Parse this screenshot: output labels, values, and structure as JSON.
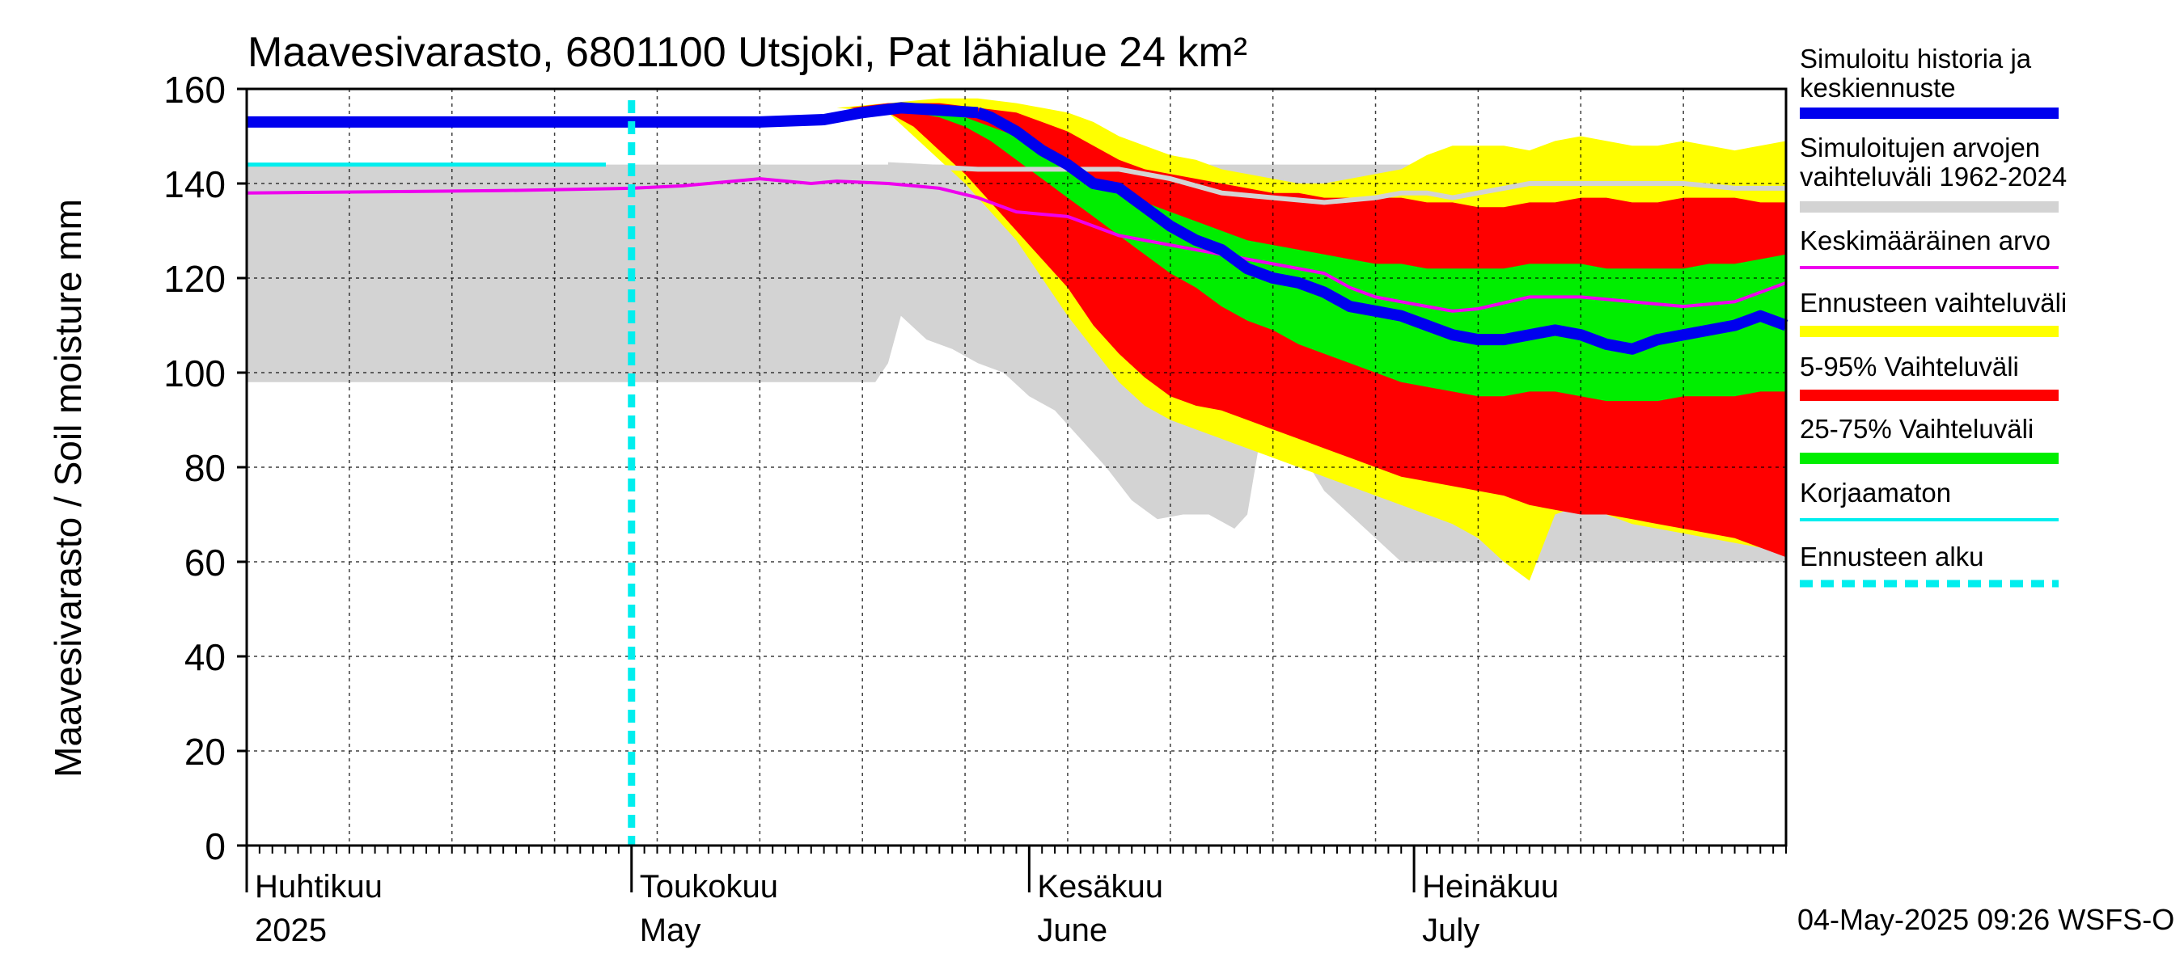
{
  "chart_data": {
    "type": "area",
    "title": "Maavesivarasto, 6801100 Utsjoki, Pat lähialue 24 km²",
    "ylabel": "Maavesivarasto / Soil moisture   mm",
    "xlabel": "",
    "ylim": [
      0,
      160
    ],
    "yticks": [
      0,
      20,
      40,
      60,
      80,
      100,
      120,
      140,
      160
    ],
    "xlim_days": [
      0,
      120
    ],
    "grid": true,
    "month_labels": [
      {
        "day": 0,
        "fi": "Huhtikuu",
        "en": "2025"
      },
      {
        "day": 30,
        "fi": "Toukokuu",
        "en": "May"
      },
      {
        "day": 61,
        "fi": "Kesäkuu",
        "en": "June"
      },
      {
        "day": 91,
        "fi": "Heinäkuu",
        "en": "July"
      }
    ],
    "forecast_start_day": 30,
    "timestamp": "04-May-2025 09:26 WSFS-O",
    "colors": {
      "history": "#0000ee",
      "sim_range": "#d3d3d3",
      "mean": "#ee00ee",
      "forecast_range": "#ffff00",
      "p5_95": "#ff0000",
      "p25_75": "#00ee00",
      "uncorrected": "#00eeee",
      "forecast_start": "#00eeee",
      "median_grey": "#d3d3d3"
    },
    "legend": [
      {
        "label": "Simuloitu historia ja keskiennuste",
        "key": "history"
      },
      {
        "label": "Simuloitujen arvojen vaihteluväli 1962-2024",
        "key": "sim_range"
      },
      {
        "label": "Keskimääräinen arvo",
        "key": "mean"
      },
      {
        "label": "Ennusteen vaihteluväli",
        "key": "forecast_range"
      },
      {
        "label": "5-95% Vaihteluväli",
        "key": "p5_95"
      },
      {
        "label": "25-75% Vaihteluväli",
        "key": "p25_75"
      },
      {
        "label": "Korjaamaton",
        "key": "uncorrected"
      },
      {
        "label": "Ennusteen alku",
        "key": "forecast_start"
      }
    ],
    "series": {
      "history": {
        "x": [
          0,
          30,
          40,
          45,
          48,
          51,
          54,
          57
        ],
        "y": [
          153,
          153,
          153,
          153.5,
          155,
          156,
          155.5,
          155
        ]
      },
      "forecast_mean": {
        "x": [
          57,
          58,
          60,
          62,
          64,
          66,
          68,
          70,
          72,
          74,
          76,
          78,
          80,
          82,
          84,
          86,
          88,
          90,
          92,
          94,
          96,
          98,
          100,
          102,
          104,
          106,
          108,
          110,
          112,
          114,
          116,
          118,
          120
        ],
        "y": [
          155,
          154,
          151,
          147,
          144,
          140,
          139,
          135,
          131,
          128,
          126,
          122,
          120,
          119,
          117,
          114,
          113,
          112,
          110,
          108,
          107,
          107,
          108,
          109,
          108,
          106,
          105,
          107,
          108,
          109,
          110,
          112,
          110
        ]
      },
      "uncorrected": {
        "x": [
          0,
          28
        ],
        "y": [
          144,
          144
        ]
      },
      "mean": {
        "x": [
          0,
          20,
          30,
          34,
          36,
          40,
          44,
          46,
          50,
          52,
          54,
          57,
          60,
          64,
          66,
          68,
          72,
          76,
          80,
          84,
          86,
          88,
          90,
          92,
          94,
          96,
          100,
          104,
          108,
          112,
          116,
          120
        ],
        "y": [
          138,
          138.5,
          139,
          139.5,
          140,
          141,
          140,
          140.5,
          140,
          139.5,
          139,
          137,
          134,
          133,
          131,
          129,
          127,
          125,
          123,
          121,
          118,
          116,
          115,
          114,
          113,
          113.5,
          116,
          116,
          115,
          114,
          115,
          119
        ]
      },
      "median_grey": {
        "x": [
          50,
          57,
          60,
          64,
          68,
          72,
          76,
          80,
          84,
          88,
          90,
          92,
          94,
          96,
          98,
          100,
          104,
          108,
          112,
          116,
          120
        ],
        "y": [
          144,
          143,
          143,
          143,
          143,
          141,
          138,
          137,
          136,
          137,
          138,
          138,
          137,
          138,
          139,
          140,
          140,
          140,
          140,
          139,
          139
        ]
      },
      "grey_lower": {
        "x": [
          0,
          49,
          50,
          51,
          53,
          55,
          57,
          59,
          61,
          63,
          65,
          67,
          69,
          71,
          73,
          75,
          77,
          78,
          79,
          80,
          82,
          84,
          86,
          88,
          90,
          92,
          94,
          96,
          98,
          100,
          104,
          110,
          120
        ],
        "y": [
          98,
          98,
          102,
          112,
          107,
          105,
          102,
          100,
          95,
          92,
          86,
          80,
          73,
          69,
          70,
          70,
          67,
          70,
          86,
          85,
          84,
          75,
          70,
          65,
          60,
          60,
          60,
          60,
          60,
          60,
          60,
          60,
          60
        ]
      },
      "grey_upper": {
        "x": [
          0,
          120
        ],
        "y": [
          144,
          144
        ]
      },
      "yellow_upper": {
        "x": [
          46,
          50,
          54,
          57,
          60,
          62,
          64,
          66,
          68,
          70,
          72,
          74,
          76,
          78,
          80,
          82,
          84,
          86,
          88,
          90,
          92,
          94,
          96,
          98,
          100,
          102,
          104,
          106,
          108,
          110,
          112,
          114,
          116,
          118,
          120
        ],
        "y": [
          156,
          157,
          158,
          158,
          157,
          156,
          155,
          153,
          150,
          148,
          146,
          145,
          143,
          142,
          141,
          140,
          140,
          141,
          142,
          143,
          146,
          148,
          148,
          148,
          147,
          149,
          150,
          149,
          148,
          148,
          149,
          148,
          147,
          148,
          149
        ]
      },
      "yellow_lower": {
        "x": [
          46,
          50,
          52,
          54,
          56,
          58,
          60,
          62,
          64,
          66,
          68,
          70,
          72,
          74,
          76,
          78,
          80,
          82,
          84,
          86,
          88,
          90,
          92,
          94,
          96,
          98,
          100,
          102,
          104,
          106,
          108,
          110,
          112,
          114,
          116,
          118,
          120
        ],
        "y": [
          156,
          155,
          150,
          145,
          140,
          134,
          128,
          120,
          112,
          105,
          98,
          93,
          90,
          88,
          86,
          84,
          82,
          80,
          78,
          76,
          74,
          72,
          70,
          68,
          65,
          60,
          56,
          70,
          72,
          70,
          68,
          67,
          66,
          65,
          64,
          63,
          62
        ]
      },
      "red_upper": {
        "x": [
          47,
          50,
          54,
          57,
          60,
          62,
          64,
          66,
          68,
          70,
          72,
          74,
          76,
          78,
          80,
          82,
          84,
          86,
          88,
          90,
          92,
          94,
          96,
          98,
          100,
          102,
          104,
          106,
          108,
          110,
          112,
          114,
          116,
          118,
          120
        ],
        "y": [
          156,
          157,
          157,
          156,
          155,
          153,
          151,
          148,
          145,
          143,
          142,
          141,
          140,
          139,
          138,
          138,
          137,
          137,
          137,
          137,
          136,
          136,
          135,
          135,
          136,
          136,
          137,
          137,
          136,
          136,
          137,
          137,
          137,
          136,
          136
        ]
      },
      "red_lower": {
        "x": [
          47,
          50,
          52,
          54,
          56,
          58,
          60,
          62,
          64,
          66,
          68,
          70,
          72,
          74,
          76,
          78,
          80,
          82,
          84,
          86,
          88,
          90,
          92,
          94,
          96,
          98,
          100,
          102,
          104,
          106,
          108,
          110,
          112,
          114,
          116,
          118,
          120
        ],
        "y": [
          156,
          155,
          152,
          147,
          142,
          136,
          130,
          124,
          118,
          110,
          104,
          99,
          95,
          93,
          92,
          90,
          88,
          86,
          84,
          82,
          80,
          78,
          77,
          76,
          75,
          74,
          72,
          71,
          70,
          70,
          69,
          68,
          67,
          66,
          65,
          63,
          61
        ]
      },
      "green_upper": {
        "x": [
          52,
          54,
          56,
          58,
          60,
          62,
          64,
          66,
          68,
          70,
          72,
          74,
          76,
          78,
          80,
          82,
          84,
          86,
          88,
          90,
          92,
          94,
          96,
          98,
          100,
          102,
          104,
          106,
          108,
          110,
          112,
          114,
          116,
          118,
          120
        ],
        "y": [
          155,
          155,
          154,
          152,
          150,
          147,
          144,
          141,
          138,
          136,
          134,
          132,
          130,
          128,
          127,
          126,
          125,
          124,
          123,
          123,
          122,
          122,
          122,
          122,
          123,
          123,
          123,
          122,
          122,
          122,
          122,
          123,
          123,
          124,
          125
        ]
      },
      "green_lower": {
        "x": [
          52,
          54,
          56,
          58,
          60,
          62,
          64,
          66,
          68,
          70,
          72,
          74,
          76,
          78,
          80,
          82,
          84,
          86,
          88,
          90,
          92,
          94,
          96,
          98,
          100,
          102,
          104,
          106,
          108,
          110,
          112,
          114,
          116,
          118,
          120
        ],
        "y": [
          155,
          154,
          152,
          149,
          145,
          141,
          137,
          133,
          129,
          125,
          121,
          118,
          114,
          111,
          109,
          106,
          104,
          102,
          100,
          98,
          97,
          96,
          95,
          95,
          96,
          96,
          95,
          94,
          94,
          94,
          95,
          95,
          95,
          96,
          96
        ]
      }
    }
  }
}
